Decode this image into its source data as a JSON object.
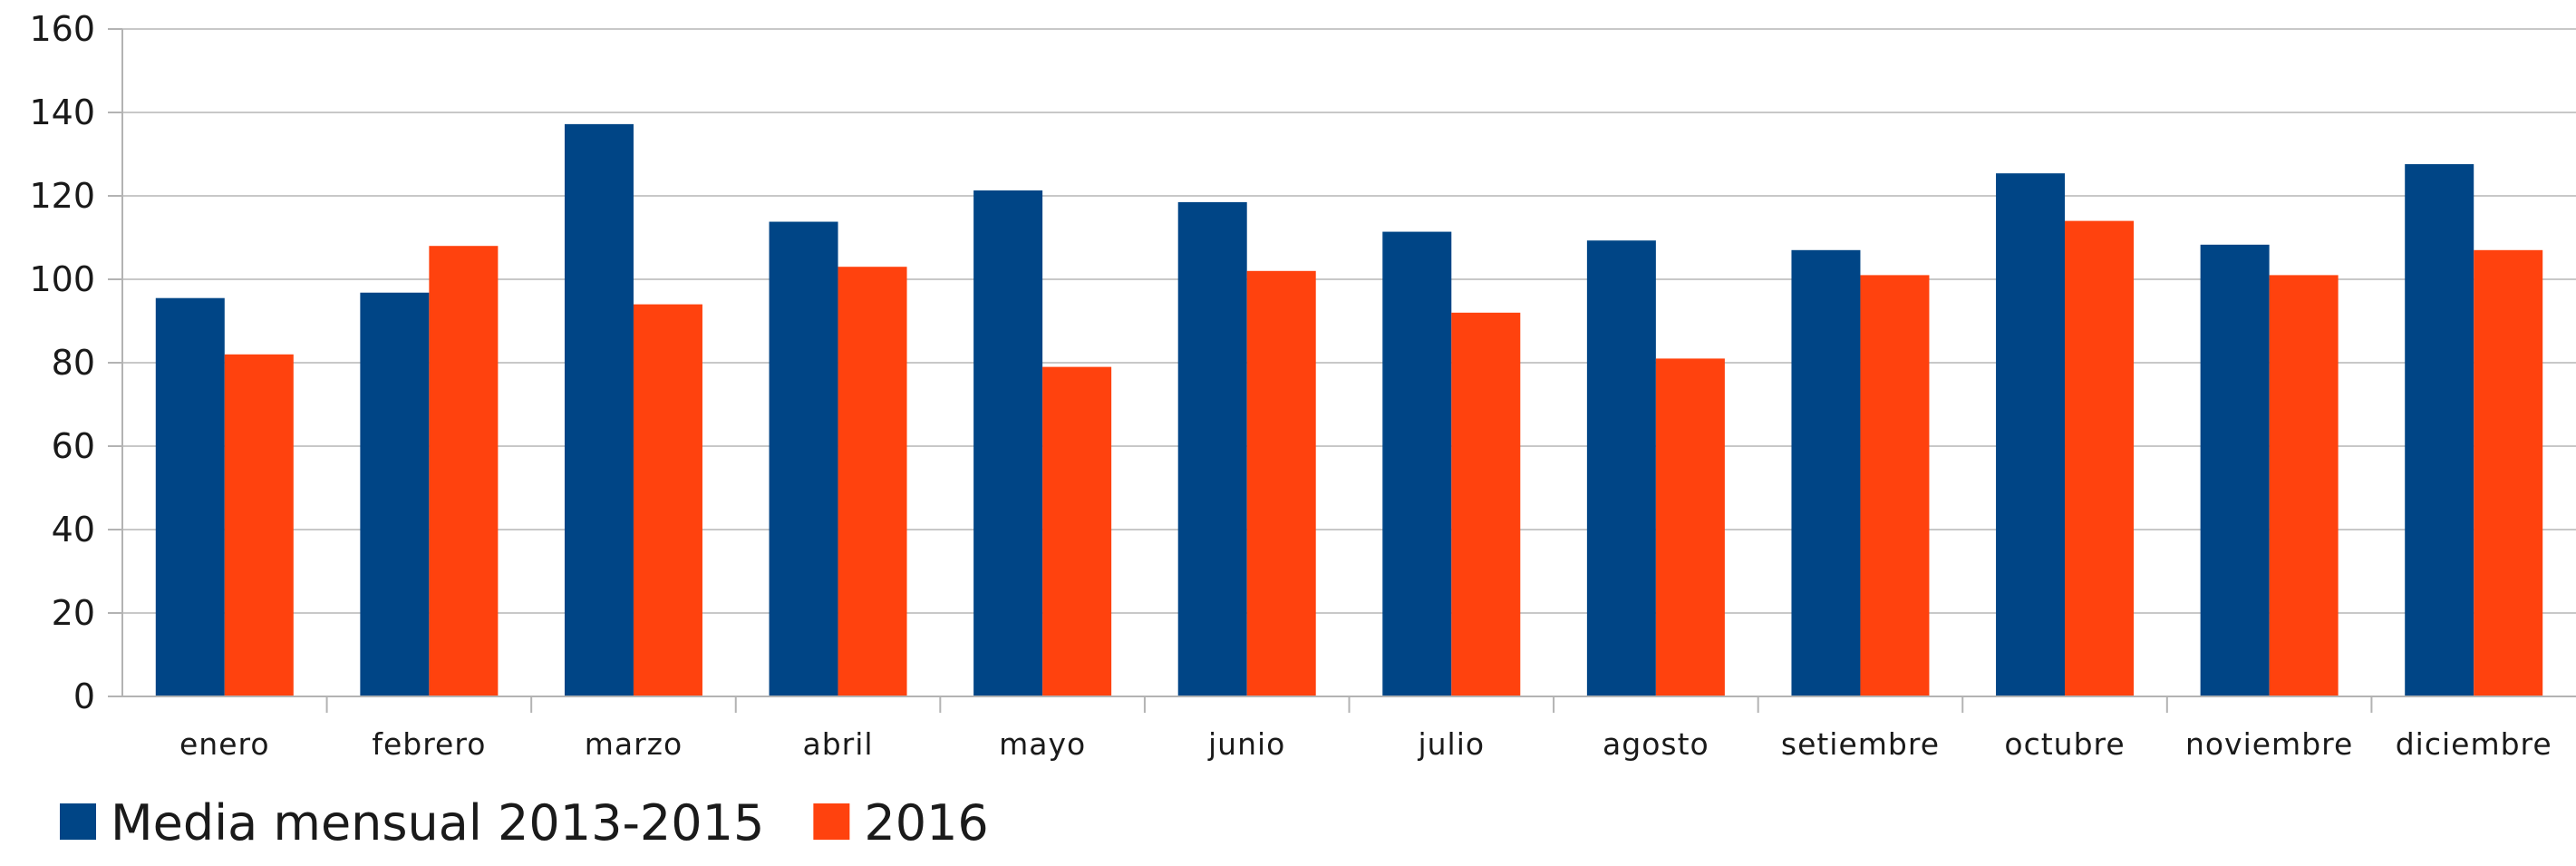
{
  "chart_data": {
    "type": "bar",
    "categories": [
      "enero",
      "febrero",
      "marzo",
      "abril",
      "mayo",
      "junio",
      "julio",
      "agosto",
      "setiembre",
      "octubre",
      "noviembre",
      "diciembre"
    ],
    "series": [
      {
        "name": "Media mensual 2013-2015",
        "color": "#004586",
        "values": [
          95.5,
          96.8,
          137.2,
          113.8,
          121.3,
          118.5,
          111.4,
          109.3,
          107,
          125.4,
          108.3,
          127.6
        ]
      },
      {
        "name": "2016",
        "color": "#ff420e",
        "values": [
          82,
          108,
          94,
          103,
          79,
          102,
          92,
          81,
          101,
          114,
          101,
          107
        ]
      }
    ],
    "ylim": [
      0,
      160
    ],
    "yticks": [
      0,
      20,
      40,
      60,
      80,
      100,
      120,
      140,
      160
    ],
    "grid": true,
    "legend_position": "bottom-left",
    "title": "",
    "xlabel": "",
    "ylabel": ""
  }
}
